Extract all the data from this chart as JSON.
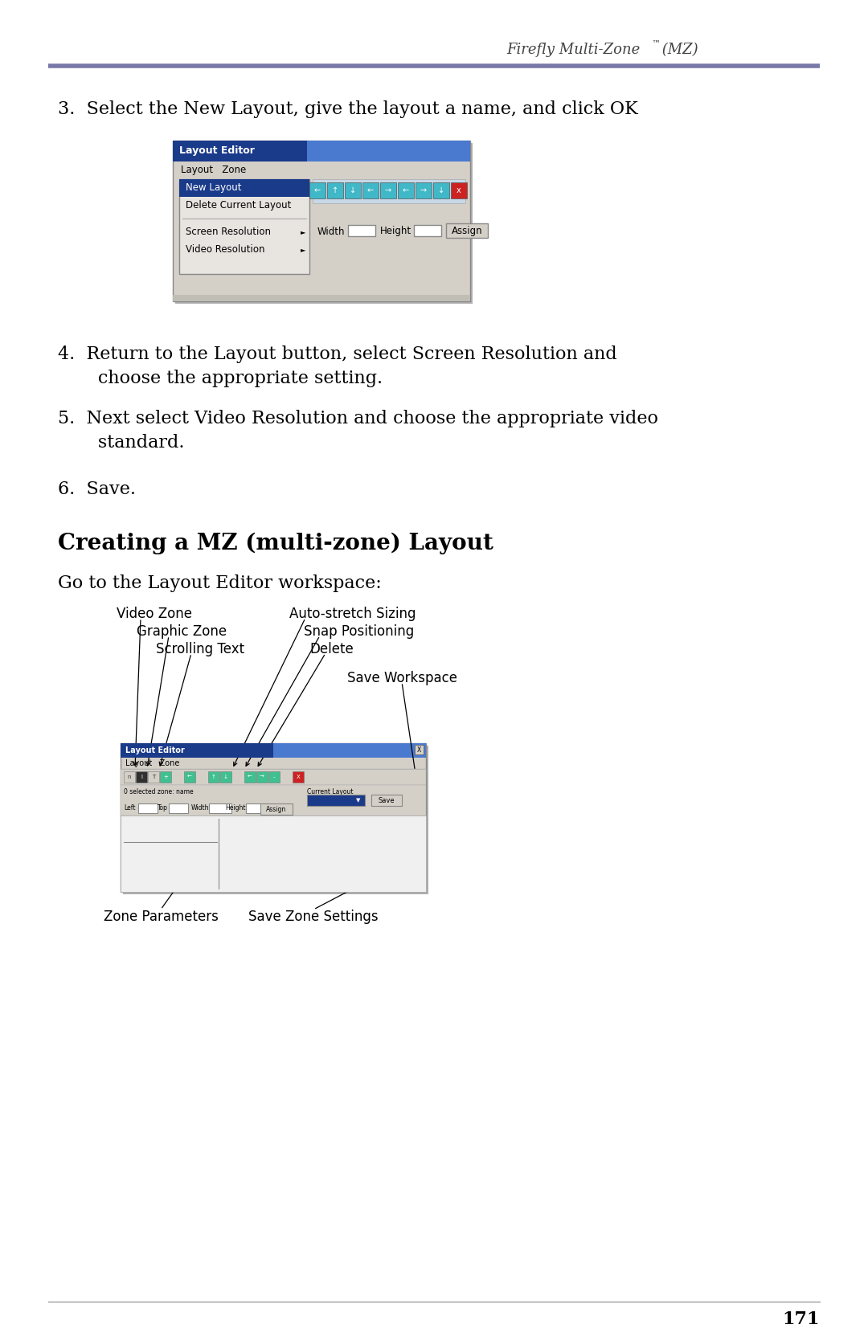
{
  "header_title": "Firefly Multi-Zone",
  "header_tm": "™",
  "header_suffix": " (MZ)",
  "header_line_color": "#7878a8",
  "step3": "3.  Select the New Layout, give the layout a name, and click OK",
  "step4a": "4.  Return to the Layout button, select Screen Resolution and",
  "step4b": "       choose the appropriate setting.",
  "step5a": "5.  Next select Video Resolution and choose the appropriate video",
  "step5b": "       standard.",
  "step6": "6.  Save.",
  "section_heading": "Creating a MZ (multi-zone) Layout",
  "intro": "Go to the Layout Editor workspace:",
  "ann_vz": "Video Zone",
  "ann_gz": "Graphic Zone",
  "ann_st": "Scrolling Text",
  "ann_as": "Auto-stretch Sizing",
  "ann_sp": "Snap Positioning",
  "ann_del": "Delete",
  "ann_sw": "Save Workspace",
  "ann_zp": "Zone Parameters",
  "ann_szs": "Save Zone Settings",
  "page_num": "171",
  "footer_color": "#888888",
  "win_bg": "#d4d0c8",
  "title_bar_left": "#1a3a8a",
  "title_bar_right": "#4a7ad0",
  "menu_highlight": "#1a3a8a",
  "body_fs": 16,
  "heading_fs": 20,
  "ann_fs": 12
}
